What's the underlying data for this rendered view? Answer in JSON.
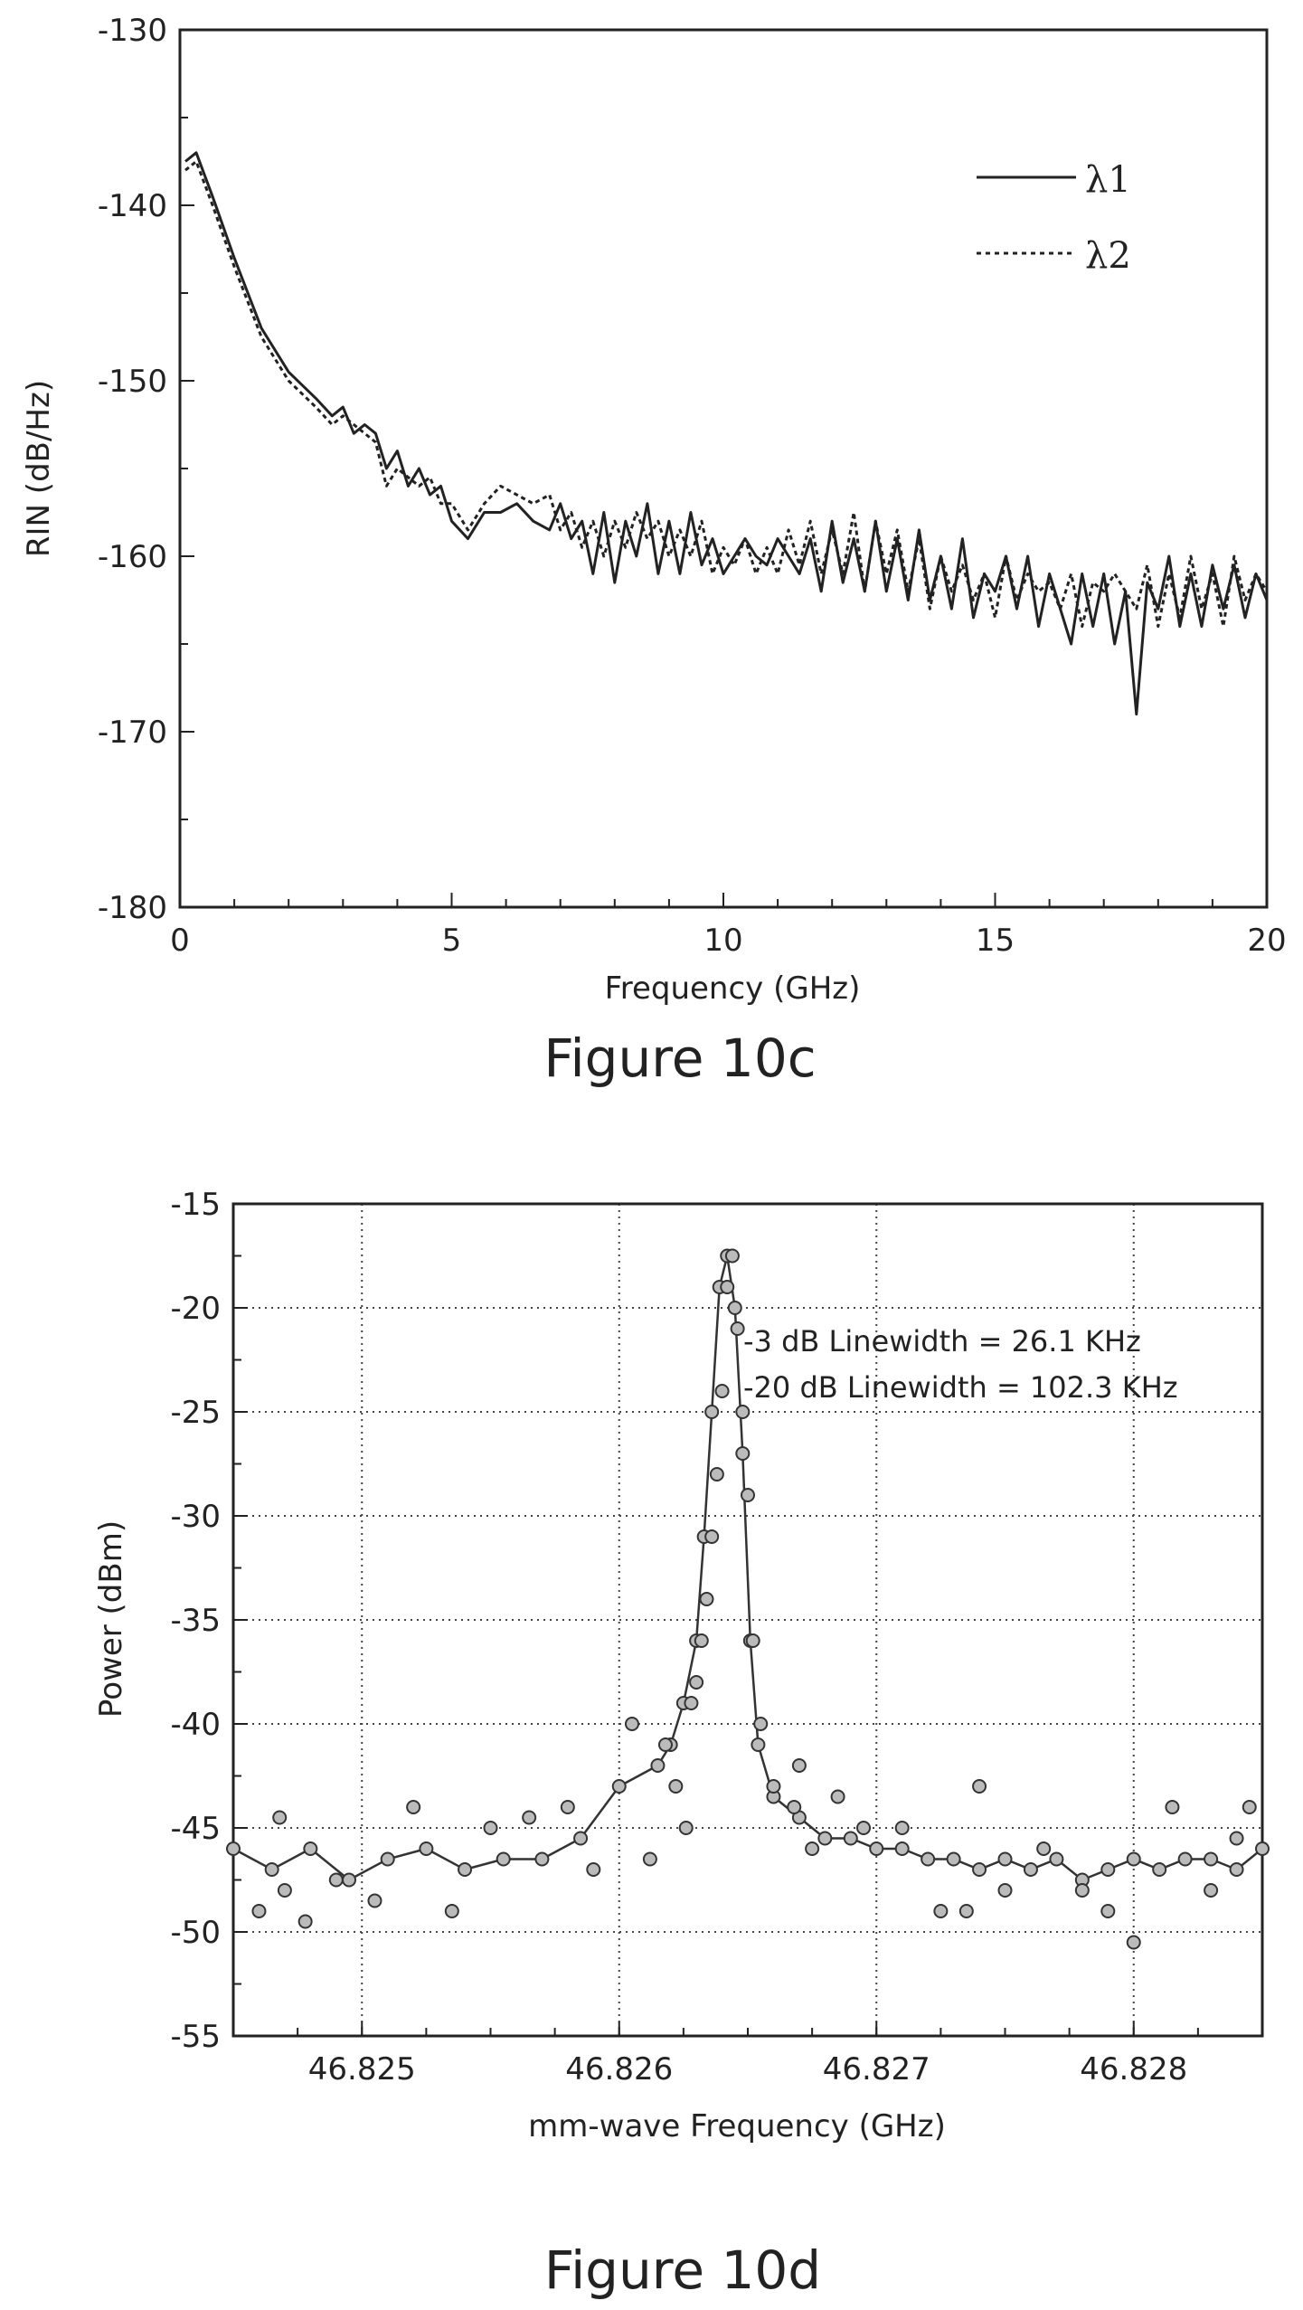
{
  "figures": [
    {
      "caption": "Figure 10c"
    },
    {
      "caption": "Figure 10d"
    }
  ],
  "chart_data": [
    {
      "type": "line",
      "xlabel": "Frequency (GHz)",
      "ylabel": "RIN (dB/Hz)",
      "xlim": [
        0,
        20
      ],
      "ylim": [
        -180,
        -130
      ],
      "xticks": [
        "0",
        "5",
        "10",
        "15",
        "20"
      ],
      "yticks": [
        "-130",
        "-140",
        "-150",
        "-160",
        "-170",
        "-180"
      ],
      "legend_position": "top-right",
      "series": [
        {
          "name": "λ1",
          "style": "solid",
          "x": [
            0.1,
            0.3,
            0.6,
            1.0,
            1.5,
            2.0,
            2.5,
            2.8,
            3.0,
            3.2,
            3.4,
            3.6,
            3.8,
            4.0,
            4.2,
            4.4,
            4.6,
            4.8,
            5.0,
            5.3,
            5.6,
            5.9,
            6.2,
            6.5,
            6.8,
            7.0,
            7.2,
            7.4,
            7.6,
            7.8,
            8.0,
            8.2,
            8.4,
            8.6,
            8.8,
            9.0,
            9.2,
            9.4,
            9.6,
            9.8,
            10.0,
            10.2,
            10.4,
            10.6,
            10.8,
            11.0,
            11.2,
            11.4,
            11.6,
            11.8,
            12.0,
            12.2,
            12.4,
            12.6,
            12.8,
            13.0,
            13.2,
            13.4,
            13.6,
            13.8,
            14.0,
            14.2,
            14.4,
            14.6,
            14.8,
            15.0,
            15.2,
            15.4,
            15.6,
            15.8,
            16.0,
            16.2,
            16.4,
            16.6,
            16.8,
            17.0,
            17.2,
            17.4,
            17.6,
            17.8,
            18.0,
            18.2,
            18.4,
            18.6,
            18.8,
            19.0,
            19.2,
            19.4,
            19.6,
            19.8,
            20.0
          ],
          "y": [
            -137.5,
            -137,
            -139.5,
            -143,
            -147,
            -149.5,
            -151,
            -152,
            -151.5,
            -153,
            -152.5,
            -153,
            -155,
            -154,
            -156,
            -155,
            -156.5,
            -156,
            -158,
            -159,
            -157.5,
            -157.5,
            -157,
            -158,
            -158.5,
            -157,
            -159,
            -158,
            -161,
            -157.5,
            -161.5,
            -158,
            -160,
            -157,
            -161,
            -158,
            -161,
            -157.5,
            -160.5,
            -159,
            -161,
            -160,
            -159,
            -160,
            -160.5,
            -159,
            -160,
            -161,
            -159,
            -162,
            -158,
            -161.5,
            -159,
            -162,
            -158,
            -162,
            -159,
            -162.5,
            -158.5,
            -162.5,
            -160,
            -163,
            -159,
            -163.5,
            -161,
            -162,
            -160,
            -163,
            -160,
            -164,
            -161,
            -163,
            -165,
            -161,
            -164,
            -161,
            -165,
            -162,
            -169,
            -161.5,
            -163,
            -160,
            -164,
            -161,
            -164,
            -160.5,
            -163,
            -160.5,
            -163.5,
            -161,
            -162.5
          ]
        },
        {
          "name": "λ2",
          "style": "dashed",
          "x": [
            0.1,
            0.3,
            0.6,
            1.0,
            1.5,
            2.0,
            2.5,
            2.8,
            3.0,
            3.2,
            3.4,
            3.6,
            3.8,
            4.0,
            4.2,
            4.4,
            4.6,
            4.8,
            5.0,
            5.3,
            5.6,
            5.9,
            6.2,
            6.5,
            6.8,
            7.0,
            7.2,
            7.4,
            7.6,
            7.8,
            8.0,
            8.2,
            8.4,
            8.6,
            8.8,
            9.0,
            9.2,
            9.4,
            9.6,
            9.8,
            10.0,
            10.2,
            10.4,
            10.6,
            10.8,
            11.0,
            11.2,
            11.4,
            11.6,
            11.8,
            12.0,
            12.2,
            12.4,
            12.6,
            12.8,
            13.0,
            13.2,
            13.4,
            13.6,
            13.8,
            14.0,
            14.2,
            14.4,
            14.6,
            14.8,
            15.0,
            15.2,
            15.4,
            15.6,
            15.8,
            16.0,
            16.2,
            16.4,
            16.6,
            16.8,
            17.0,
            17.2,
            17.4,
            17.6,
            17.8,
            18.0,
            18.2,
            18.4,
            18.6,
            18.8,
            19.0,
            19.2,
            19.4,
            19.6,
            19.8,
            20.0
          ],
          "y": [
            -138,
            -137.5,
            -140,
            -143.5,
            -147.5,
            -150,
            -151.5,
            -152.5,
            -152,
            -152.5,
            -153,
            -153.5,
            -156,
            -155,
            -155.5,
            -156,
            -155.5,
            -157,
            -157,
            -158.5,
            -157,
            -156,
            -156.5,
            -157,
            -156.5,
            -158.5,
            -157.5,
            -159.5,
            -158,
            -160,
            -158,
            -159.5,
            -157.5,
            -159,
            -158,
            -160,
            -158.5,
            -160,
            -158,
            -161,
            -159.5,
            -160.5,
            -159,
            -161,
            -159.5,
            -161,
            -158.5,
            -160.5,
            -158,
            -161,
            -158.5,
            -161,
            -157.5,
            -162,
            -158,
            -161,
            -158.5,
            -162,
            -159,
            -163,
            -160,
            -162,
            -160.5,
            -162.5,
            -161,
            -163.5,
            -160,
            -162.5,
            -161,
            -162,
            -161.5,
            -163,
            -161,
            -164,
            -161.5,
            -162,
            -161,
            -162,
            -163,
            -160.5,
            -164,
            -161,
            -163.5,
            -160,
            -163,
            -161,
            -164,
            -160,
            -162.5,
            -161,
            -162
          ]
        }
      ]
    },
    {
      "type": "scatter",
      "xlabel": "mm-wave Frequency (GHz)",
      "ylabel": "Power (dBm)",
      "xlim": [
        46.8245,
        46.8285
      ],
      "ylim": [
        -55,
        -15
      ],
      "xticks": [
        "46.825",
        "46.826",
        "46.827",
        "46.828"
      ],
      "yticks": [
        "-15",
        "-20",
        "-25",
        "-30",
        "-35",
        "-40",
        "-45",
        "-50",
        "-55"
      ],
      "grid": true,
      "annotations": [
        "-3 dB Linewidth = 26.1 KHz",
        "-20 dB Linewidth = 102.3 KHz"
      ],
      "series": [
        {
          "name": "",
          "style": "markers+line",
          "x": [
            46.8245,
            46.82465,
            46.8248,
            46.82495,
            46.8251,
            46.82525,
            46.8254,
            46.82555,
            46.8257,
            46.82585,
            46.826,
            46.82615,
            46.8262,
            46.82625,
            46.8263,
            46.82633,
            46.82636,
            46.82639,
            46.82642,
            46.82645,
            46.82648,
            46.82651,
            46.82654,
            46.8266,
            46.8267,
            46.8268,
            46.8269,
            46.827,
            46.8271,
            46.8272,
            46.8273,
            46.8274,
            46.8275,
            46.8276,
            46.8277,
            46.8278,
            46.8279,
            46.828,
            46.8281,
            46.8282,
            46.8283,
            46.8284,
            46.8285
          ],
          "y": [
            -46,
            -47,
            -46,
            -47.5,
            -46.5,
            -46,
            -47,
            -46.5,
            -46.5,
            -45.5,
            -43,
            -42,
            -41,
            -39,
            -36,
            -31,
            -25,
            -19,
            -17.5,
            -20,
            -27,
            -36,
            -41,
            -43.5,
            -44.5,
            -45.5,
            -45.5,
            -46,
            -46,
            -46.5,
            -46.5,
            -47,
            -46.5,
            -47,
            -46.5,
            -47.5,
            -47,
            -46.5,
            -47,
            -46.5,
            -46.5,
            -47,
            -46
          ]
        }
      ],
      "scatter_points": {
        "x": [
          46.8246,
          46.82468,
          46.8247,
          46.82478,
          46.8249,
          46.82505,
          46.8252,
          46.82535,
          46.8255,
          46.82565,
          46.8258,
          46.8259,
          46.82605,
          46.82612,
          46.82618,
          46.82622,
          46.82626,
          46.82628,
          46.8263,
          46.82632,
          46.82634,
          46.82636,
          46.82638,
          46.8264,
          46.82642,
          46.82644,
          46.82646,
          46.82648,
          46.8265,
          46.82652,
          46.82655,
          46.8266,
          46.82668,
          46.8267,
          46.82675,
          46.82685,
          46.82695,
          46.8271,
          46.82725,
          46.82735,
          46.8274,
          46.8275,
          46.82765,
          46.8278,
          46.8279,
          46.828,
          46.82815,
          46.8283,
          46.8284,
          46.82845
        ],
        "y": [
          -49,
          -44.5,
          -48,
          -49.5,
          -47.5,
          -48.5,
          -44,
          -49,
          -45,
          -44.5,
          -44,
          -47,
          -40,
          -46.5,
          -41,
          -43,
          -45,
          -39,
          -38,
          -36,
          -34,
          -31,
          -28,
          -24,
          -19,
          -17.5,
          -21,
          -25,
          -29,
          -36,
          -40,
          -43,
          -44,
          -42,
          -46,
          -43.5,
          -45,
          -45,
          -49,
          -49,
          -43,
          -48,
          -46,
          -48,
          -49,
          -50.5,
          -44,
          -48,
          -45.5,
          -44
        ]
      }
    }
  ]
}
